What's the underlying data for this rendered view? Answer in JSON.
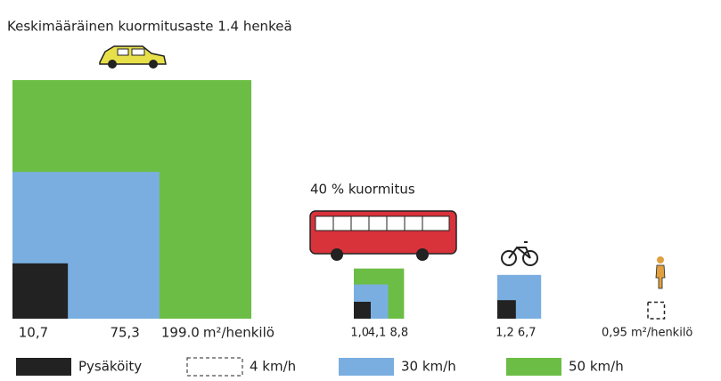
{
  "chart_data": {
    "type": "nested-squares",
    "title": "Keskimääräinen kuormitusaste 1.4 henkeä",
    "annotation": "40 % kuormitus",
    "unit": "m²/henkilö",
    "legend": [
      {
        "name": "Pysäköity",
        "color": "#222222"
      },
      {
        "name": "4 km/h",
        "color": "none",
        "dashed": true
      },
      {
        "name": "30 km/h",
        "color": "#7aaee0"
      },
      {
        "name": "50 km/h",
        "color": "#6cbd45"
      }
    ],
    "groups": [
      {
        "squares": [
          {
            "value": 10.7,
            "label": "10,7",
            "color": "#222222"
          },
          {
            "value": 75.3,
            "label": "75,3",
            "color": "#7aaee0"
          },
          {
            "value": 199.0,
            "label": "199.0",
            "color": "#6cbd45"
          }
        ]
      },
      {
        "squares": [
          {
            "value": 1.0,
            "label": "1,0",
            "color": "#222222"
          },
          {
            "value": 4.1,
            "label": "4,1",
            "color": "#7aaee0"
          },
          {
            "value": 8.8,
            "label": "8,8",
            "color": "#6cbd45"
          }
        ]
      },
      {
        "squares": [
          {
            "value": 1.2,
            "label": "1,2",
            "color": "#222222"
          },
          {
            "value": 6.7,
            "label": "6,7",
            "color": "#7aaee0"
          }
        ]
      },
      {
        "squares": [
          {
            "value": 0.95,
            "label": "0,95",
            "color": "none",
            "dashed": true
          }
        ]
      }
    ]
  }
}
